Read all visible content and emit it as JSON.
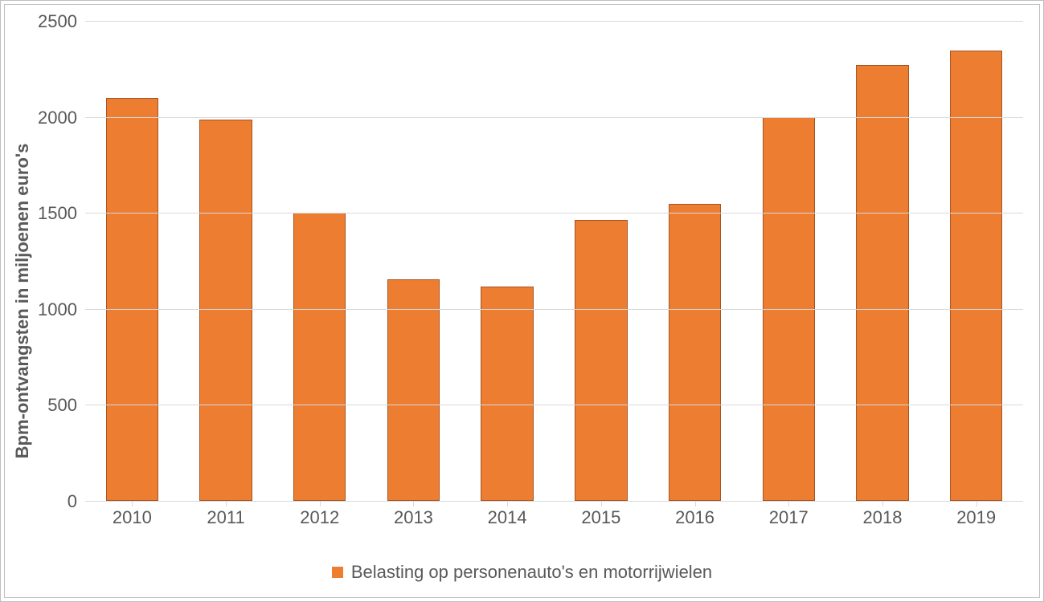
{
  "chart": {
    "type": "bar",
    "y_axis_label": "Bpm-ontvangsten in miljoenen euro's",
    "categories": [
      "2010",
      "2011",
      "2012",
      "2013",
      "2014",
      "2015",
      "2016",
      "2017",
      "2018",
      "2019"
    ],
    "values": [
      2100,
      1985,
      1500,
      1155,
      1115,
      1465,
      1545,
      2000,
      2270,
      2345
    ],
    "ylim": [
      0,
      2500
    ],
    "ytick_step": 500,
    "yticks": [
      0,
      500,
      1000,
      1500,
      2000,
      2500
    ],
    "bar_color": "#ed7d31",
    "bar_border_color": "#a65421",
    "bar_border_width": 1,
    "bar_width_ratio": 0.56,
    "background_color": "#ffffff",
    "outer_border_color": "#bfbfbf",
    "grid_color": "#d9d9d9",
    "axis_line_color": "#d9d9d9",
    "tick_label_fontsize": 22,
    "tick_label_color": "#595959",
    "axis_label_fontsize": 22,
    "axis_label_fontweight": "bold",
    "axis_label_color": "#595959",
    "legend": {
      "label": "Belasting op personenauto's en motorrijwielen",
      "swatch_color": "#ed7d31",
      "label_fontsize": 22,
      "label_color": "#595959",
      "position": "bottom-center"
    }
  }
}
